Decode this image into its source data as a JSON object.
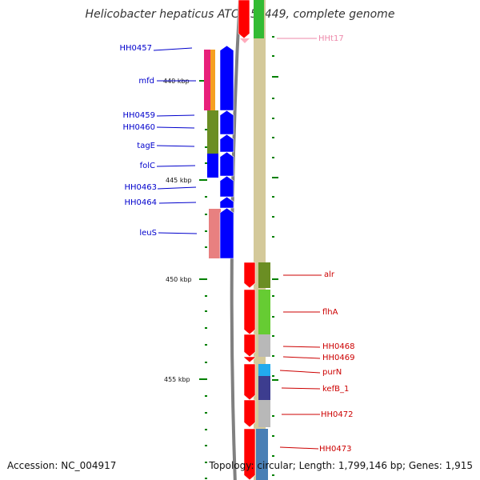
{
  "title": "Helicobacter hepaticus ATCC 51449, complete genome",
  "footer": {
    "accession": "Accession: NC_004917",
    "summary": "Topology: circular; Length: 1,799,146 bp; Genes: 1,915"
  },
  "colors": {
    "forward_label": "#0000cc",
    "reverse_label": "#cc0000",
    "rna_label": "#ee88aa",
    "tick": "#008000",
    "backbone": "#808080"
  },
  "scale": {
    "ticks": [
      {
        "label": "440 kbp"
      },
      {
        "label": "445 kbp"
      },
      {
        "label": "450 kbp"
      },
      {
        "label": "455 kbp"
      }
    ]
  },
  "forward_genes": [
    {
      "label": "HH0457"
    },
    {
      "label": "mfd"
    },
    {
      "label": "HH0459"
    },
    {
      "label": "HH0460"
    },
    {
      "label": "tagE"
    },
    {
      "label": "folC"
    },
    {
      "label": "HH0463"
    },
    {
      "label": "HH0464"
    },
    {
      "label": "leuS"
    }
  ],
  "reverse_genes": [
    {
      "label": "HHt17"
    },
    {
      "label": "alr"
    },
    {
      "label": "flhA"
    },
    {
      "label": "HH0468"
    },
    {
      "label": "HH0469"
    },
    {
      "label": "purN"
    },
    {
      "label": "kefB_1"
    },
    {
      "label": "HH0472"
    },
    {
      "label": "HH0473"
    }
  ]
}
